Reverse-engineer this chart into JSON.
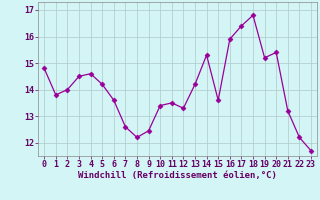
{
  "x": [
    0,
    1,
    2,
    3,
    4,
    5,
    6,
    7,
    8,
    9,
    10,
    11,
    12,
    13,
    14,
    15,
    16,
    17,
    18,
    19,
    20,
    21,
    22,
    23
  ],
  "y": [
    14.8,
    13.8,
    14.0,
    14.5,
    14.6,
    14.2,
    13.6,
    12.6,
    12.2,
    12.45,
    13.4,
    13.5,
    13.3,
    14.2,
    15.3,
    13.6,
    15.9,
    16.4,
    16.8,
    15.2,
    15.4,
    13.2,
    12.2,
    11.7
  ],
  "line_color": "#990099",
  "marker": "D",
  "markersize": 2.5,
  "linewidth": 0.9,
  "background_color": "#d4f5f5",
  "grid_color": "#b0c8c8",
  "xlabel": "Windchill (Refroidissement éolien,°C)",
  "xlabel_fontsize": 6.5,
  "tick_fontsize": 6.0,
  "ylim": [
    11.5,
    17.3
  ],
  "xlim": [
    -0.5,
    23.5
  ],
  "yticks": [
    12,
    13,
    14,
    15,
    16,
    17
  ],
  "xticks": [
    0,
    1,
    2,
    3,
    4,
    5,
    6,
    7,
    8,
    9,
    10,
    11,
    12,
    13,
    14,
    15,
    16,
    17,
    18,
    19,
    20,
    21,
    22,
    23
  ],
  "text_color": "#660066"
}
